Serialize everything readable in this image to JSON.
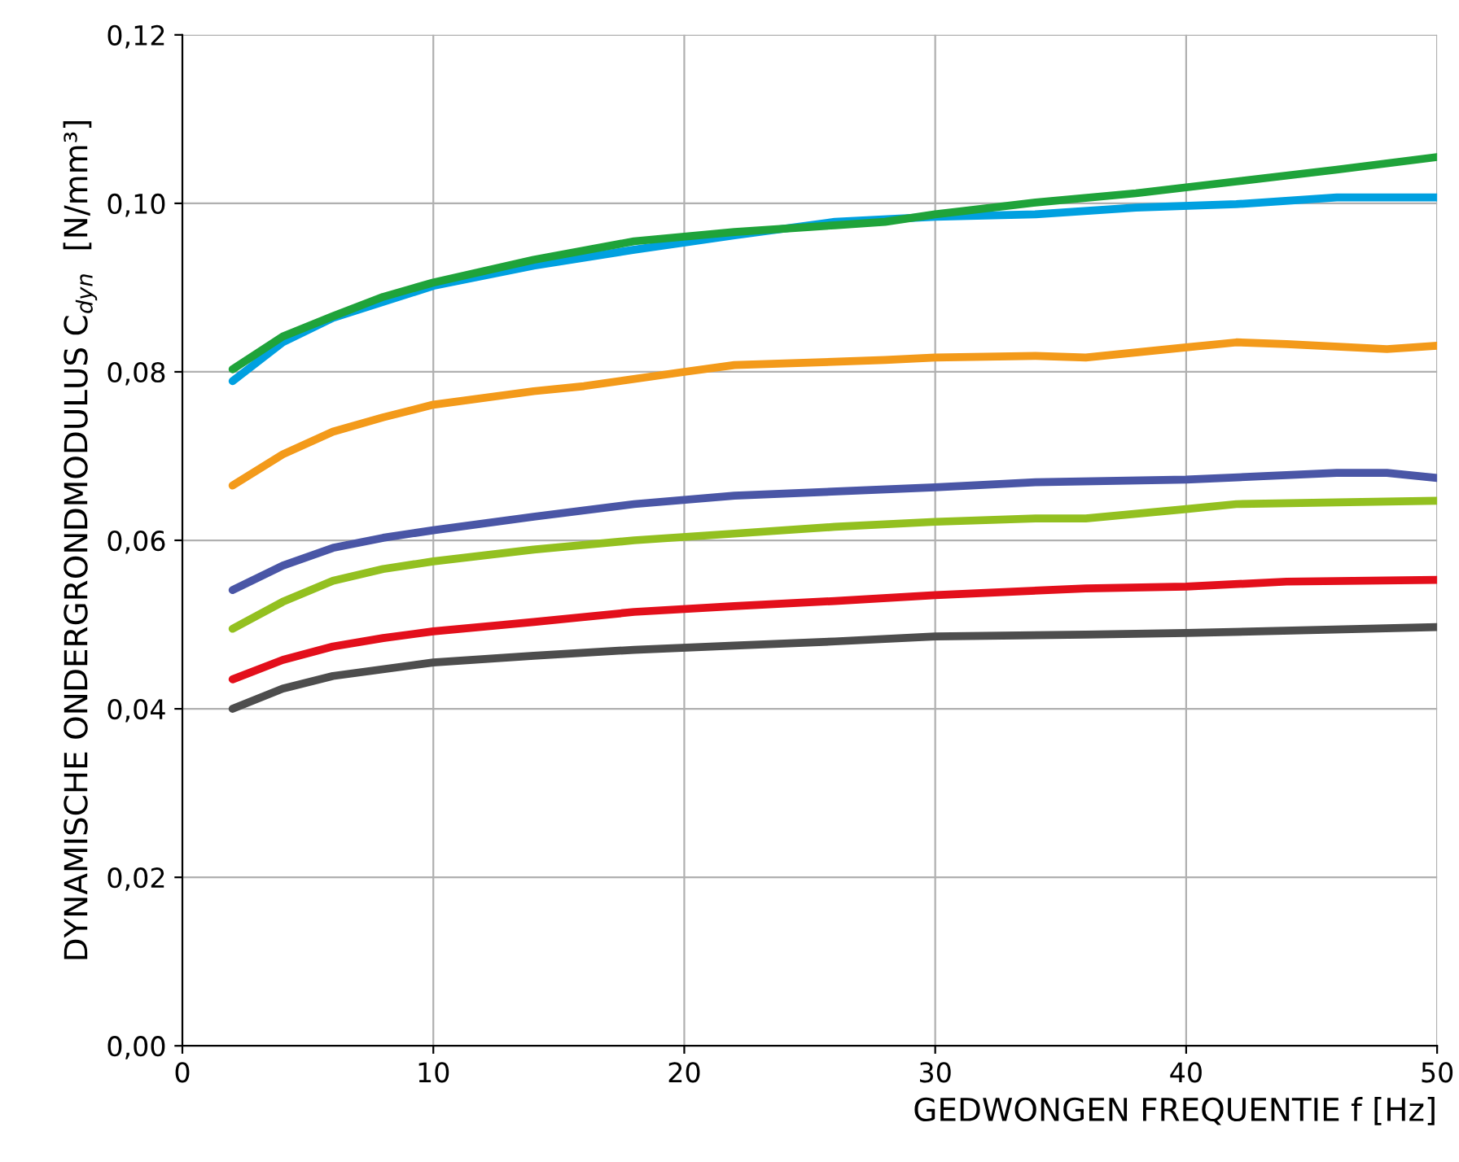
{
  "chart_data": {
    "type": "line",
    "xlabel": "GEDWONGEN FREQUENTIE f [Hz]",
    "ylabel": "DYNAMISCHE ONDERGRONDMODULUS C$_{dyn}$  [N/mm³]",
    "xlim": [
      0,
      50
    ],
    "xticks": [
      0,
      10,
      20,
      30,
      40,
      50
    ],
    "ylim": [
      0,
      0.12
    ],
    "yticks": [
      {
        "value": 0,
        "label": "0,00"
      },
      {
        "value": 0.02,
        "label": "0,02"
      },
      {
        "value": 0.04,
        "label": "0,04"
      },
      {
        "value": 0.06,
        "label": "0,06"
      },
      {
        "value": 0.08,
        "label": "0,08"
      },
      {
        "value": 0.1,
        "label": "0,10"
      },
      {
        "value": 0.12,
        "label": "0,12"
      }
    ],
    "grid": true,
    "marker": "none",
    "line_style": "solid",
    "series": [
      {
        "color": "#00a0e0",
        "x": [
          2,
          4,
          6,
          10,
          14,
          18,
          22,
          26,
          30,
          34,
          38,
          42,
          46,
          50
        ],
        "values": [
          0.0789,
          0.0835,
          0.0864,
          0.0902,
          0.0926,
          0.0945,
          0.0962,
          0.0978,
          0.0984,
          0.0987,
          0.0995,
          0.0999,
          0.1007,
          0.1007
        ]
      },
      {
        "color": "#1fa33a",
        "x": [
          2,
          4,
          6,
          8,
          10,
          14,
          18,
          22,
          26,
          28,
          30,
          34,
          38,
          42,
          46,
          50
        ],
        "values": [
          0.0803,
          0.0842,
          0.0866,
          0.0889,
          0.0906,
          0.0933,
          0.0955,
          0.0966,
          0.0974,
          0.0978,
          0.0987,
          0.1001,
          0.1012,
          0.1026,
          0.104,
          0.1055
        ]
      },
      {
        "color": "#f39a1a",
        "x": [
          2,
          4,
          6,
          8,
          10,
          14,
          16,
          20,
          22,
          28,
          30,
          34,
          36,
          40,
          42,
          44,
          48,
          50
        ],
        "values": [
          0.0665,
          0.0702,
          0.0729,
          0.0746,
          0.0761,
          0.0777,
          0.0783,
          0.08,
          0.0808,
          0.0814,
          0.0817,
          0.0819,
          0.0817,
          0.0829,
          0.0835,
          0.0833,
          0.0827,
          0.0831
        ]
      },
      {
        "color": "#4a56a6",
        "x": [
          2,
          4,
          6,
          8,
          10,
          14,
          18,
          22,
          30,
          34,
          40,
          46,
          48,
          50
        ],
        "values": [
          0.0541,
          0.057,
          0.0591,
          0.0603,
          0.0612,
          0.0628,
          0.0643,
          0.0653,
          0.0663,
          0.0669,
          0.0672,
          0.068,
          0.068,
          0.0674
        ]
      },
      {
        "color": "#93c020",
        "x": [
          2,
          4,
          6,
          8,
          10,
          14,
          18,
          22,
          26,
          30,
          34,
          36,
          40,
          42,
          46,
          50
        ],
        "values": [
          0.0495,
          0.0527,
          0.0552,
          0.0566,
          0.0575,
          0.0589,
          0.06,
          0.0608,
          0.0616,
          0.0622,
          0.0626,
          0.0626,
          0.0637,
          0.0643,
          0.0645,
          0.0647
        ]
      },
      {
        "color": "#e30f1b",
        "x": [
          2,
          4,
          6,
          8,
          10,
          14,
          18,
          22,
          26,
          30,
          36,
          40,
          44,
          50
        ],
        "values": [
          0.0435,
          0.0458,
          0.0474,
          0.0484,
          0.0492,
          0.0503,
          0.0515,
          0.0522,
          0.0528,
          0.0535,
          0.0543,
          0.0545,
          0.0551,
          0.0553
        ]
      },
      {
        "color": "#4d4d4d",
        "x": [
          2,
          4,
          6,
          10,
          14,
          18,
          22,
          26,
          30,
          36,
          40,
          50
        ],
        "values": [
          0.04,
          0.0424,
          0.0439,
          0.0455,
          0.0463,
          0.047,
          0.0475,
          0.048,
          0.0486,
          0.0488,
          0.049,
          0.0497
        ]
      }
    ]
  }
}
